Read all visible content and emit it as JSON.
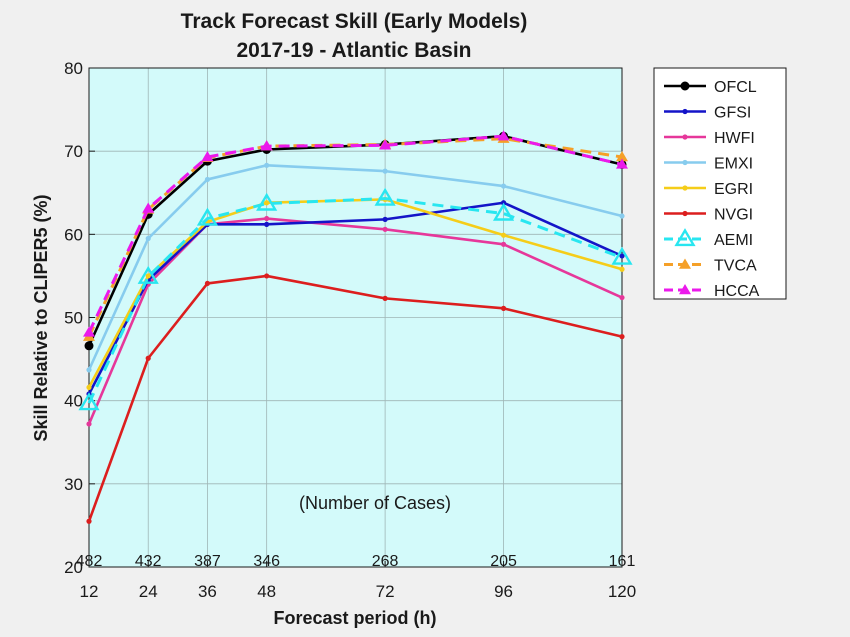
{
  "chart_data": {
    "type": "line",
    "title": [
      "Track Forecast Skill (Early Models)",
      "2017-19 - Atlantic Basin"
    ],
    "xlabel": "Forecast period (h)",
    "ylabel": "Skill Relative to CLIPER5 (%)",
    "x": [
      12,
      24,
      36,
      48,
      72,
      96,
      120
    ],
    "xlim": [
      12,
      120
    ],
    "ylim": [
      20,
      80
    ],
    "yticks": [
      20,
      30,
      40,
      50,
      60,
      70,
      80
    ],
    "grid": true,
    "legend_position": "outside-right-top",
    "plot_background": "#d3fafa",
    "annotation": "(Number of Cases)",
    "case_counts": [
      "482",
      "432",
      "387",
      "346",
      "268",
      "205",
      "161"
    ],
    "series": [
      {
        "name": "OFCL",
        "color": "#000000",
        "dash": "solid",
        "marker": "circle",
        "values": [
          46.6,
          62.4,
          68.8,
          70.2,
          70.8,
          71.8,
          68.4
        ]
      },
      {
        "name": "GFSI",
        "color": "#1414c8",
        "dash": "solid",
        "marker": "dot",
        "values": [
          40.8,
          54.5,
          61.2,
          61.2,
          61.8,
          63.8,
          57.4
        ]
      },
      {
        "name": "HWFI",
        "color": "#e6379a",
        "dash": "solid",
        "marker": "dot",
        "values": [
          37.2,
          54.0,
          61.2,
          61.9,
          60.6,
          58.8,
          52.4
        ]
      },
      {
        "name": "EMXI",
        "color": "#87ccee",
        "dash": "solid",
        "marker": "dot",
        "values": [
          43.7,
          59.5,
          66.6,
          68.3,
          67.6,
          65.8,
          62.2
        ]
      },
      {
        "name": "EGRI",
        "color": "#f5cd19",
        "dash": "solid",
        "marker": "dot",
        "values": [
          41.6,
          55.0,
          61.5,
          63.8,
          64.2,
          59.9,
          55.8
        ]
      },
      {
        "name": "NVGI",
        "color": "#dc1e1e",
        "dash": "solid",
        "marker": "dot",
        "values": [
          25.5,
          45.1,
          54.1,
          55.0,
          52.3,
          51.1,
          47.7
        ]
      },
      {
        "name": "AEMI",
        "color": "#28e6f0",
        "dash": "dashed",
        "marker": "triangle-open",
        "values": [
          39.7,
          54.9,
          61.9,
          63.7,
          64.3,
          62.5,
          57.2
        ]
      },
      {
        "name": "TVCA",
        "color": "#f5a028",
        "dash": "dashed",
        "marker": "triangle",
        "values": [
          47.7,
          63.0,
          69.2,
          70.6,
          70.8,
          71.5,
          69.3
        ]
      },
      {
        "name": "HCCA",
        "color": "#eb19eb",
        "dash": "dashed",
        "marker": "triangle",
        "values": [
          48.2,
          63.1,
          69.3,
          70.6,
          70.7,
          71.8,
          68.4
        ]
      }
    ]
  }
}
